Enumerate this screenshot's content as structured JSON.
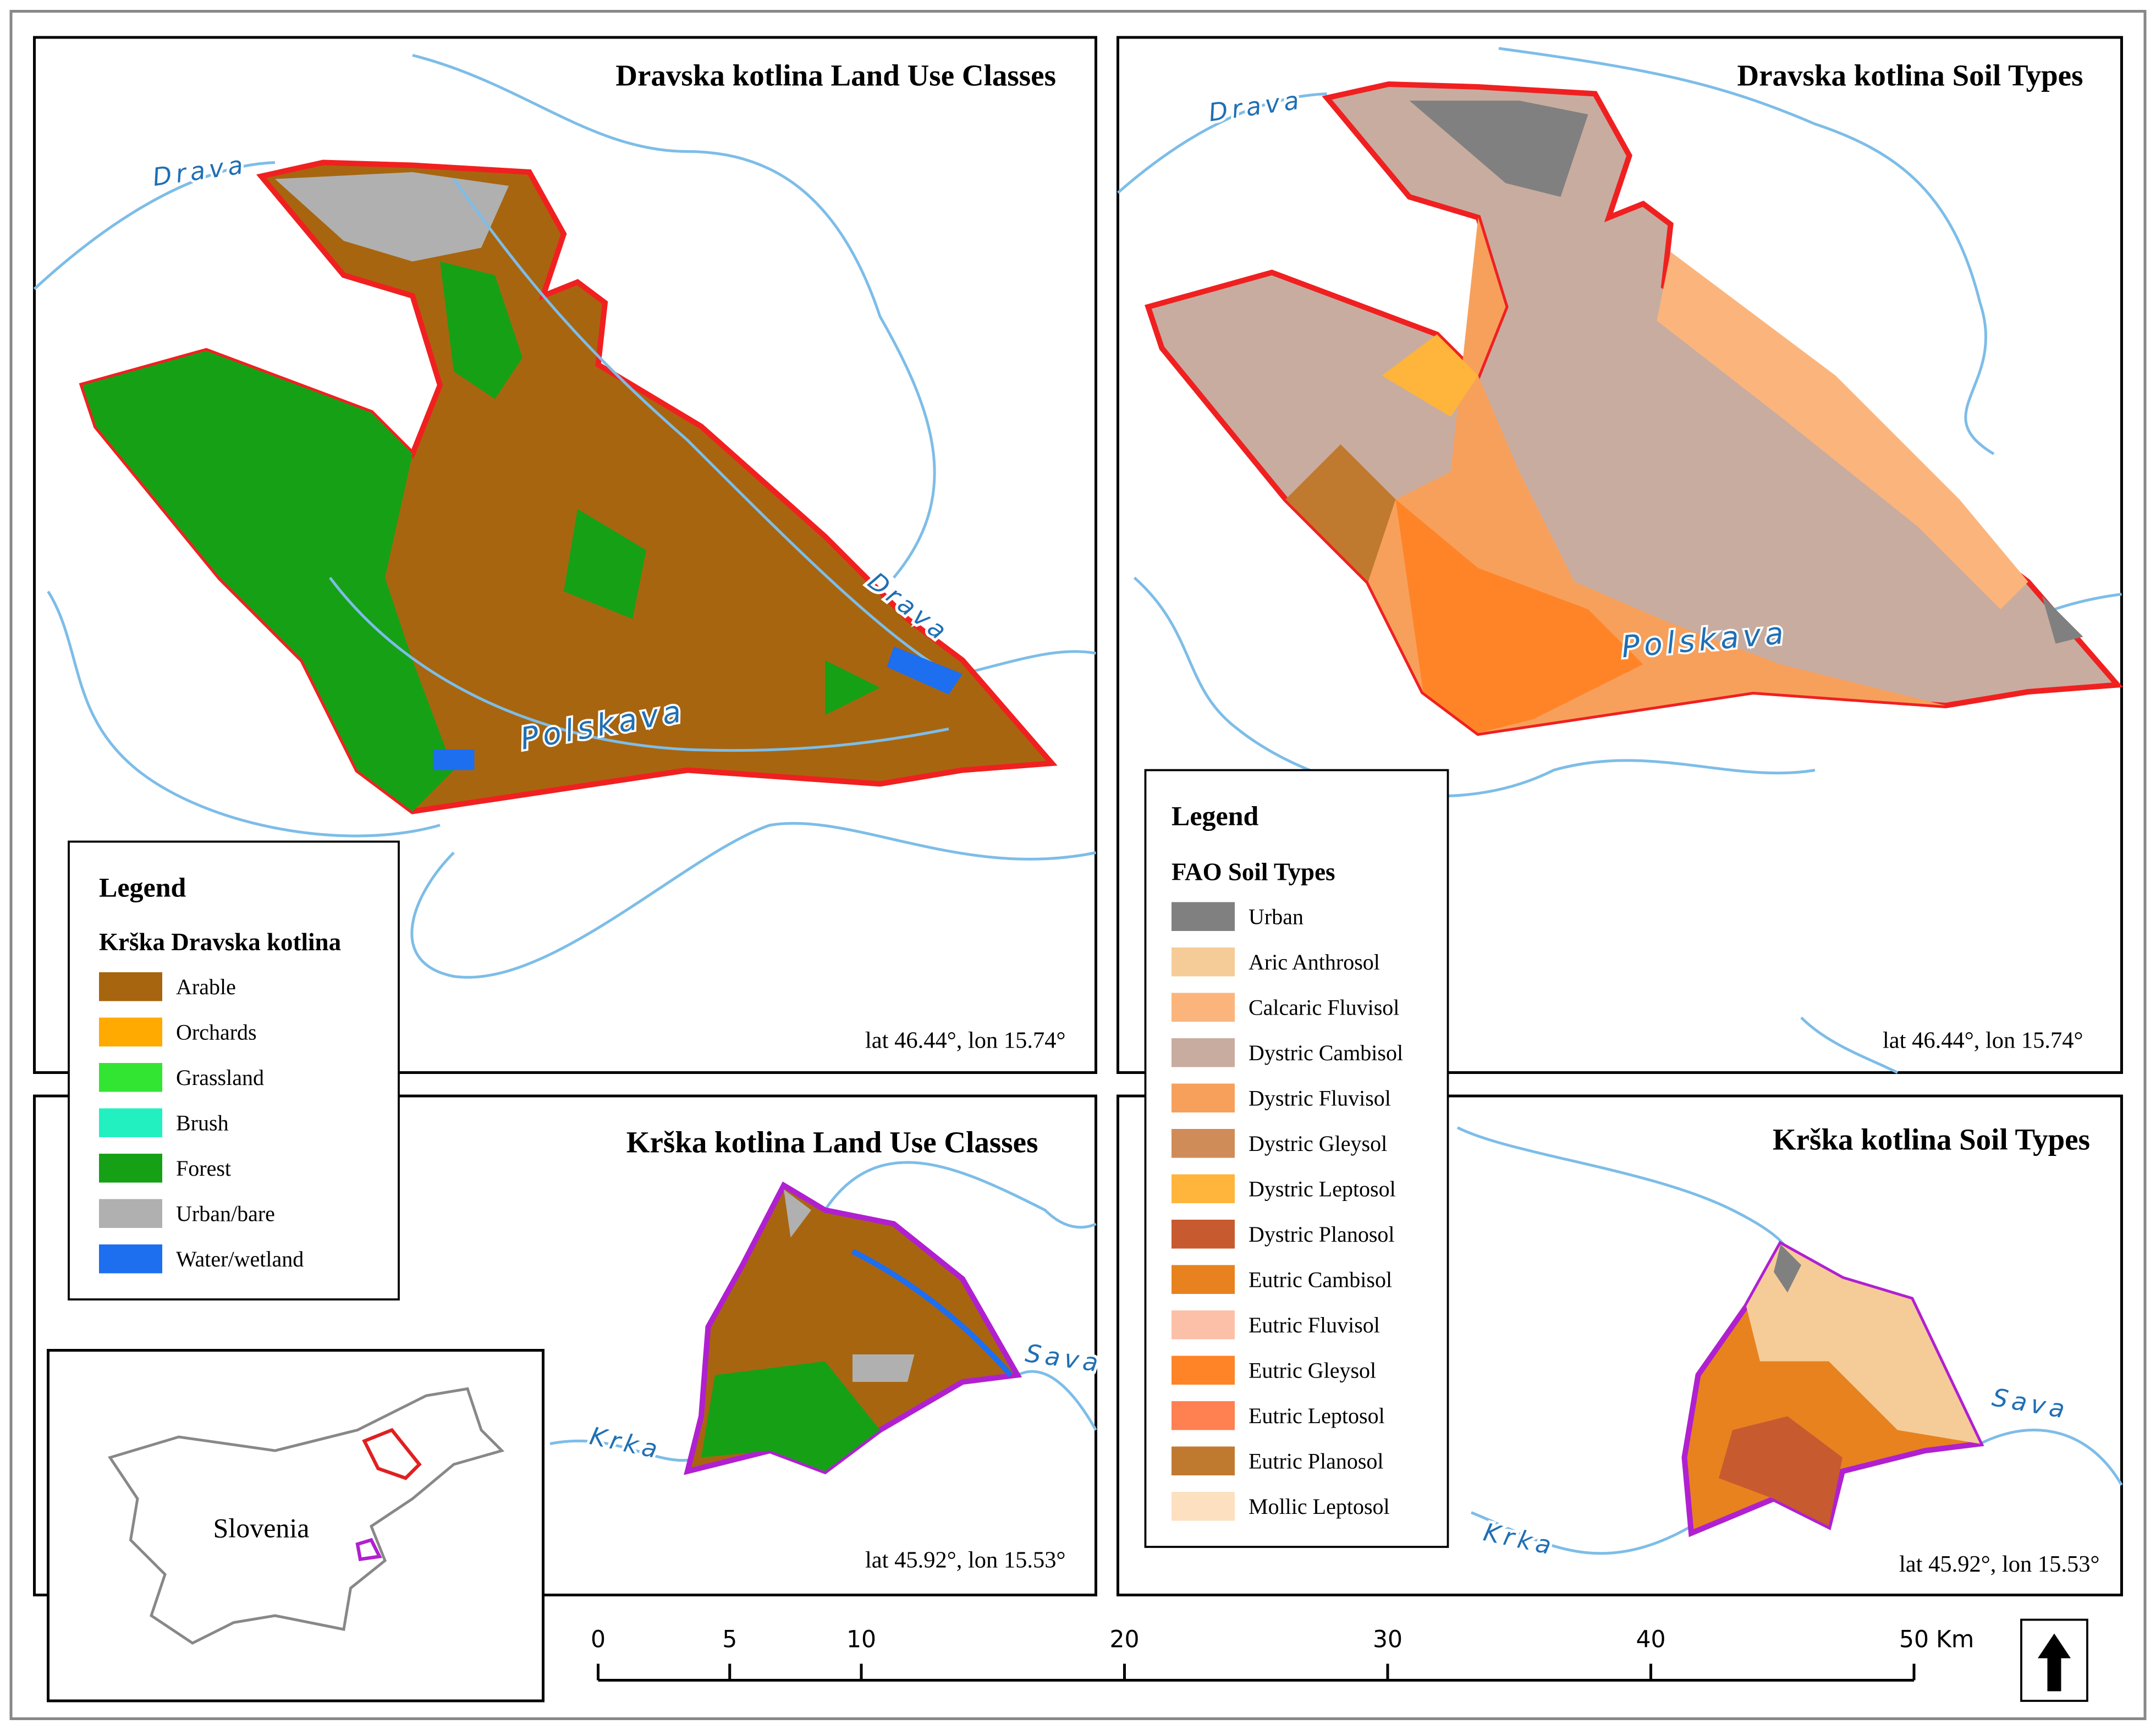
{
  "panels": [
    {
      "title": "Dravska kotlina Land Use Classes",
      "coords": "lat 46.44°, lon 15.74°",
      "rivers": [
        "Drava",
        "Drava",
        "Polskava"
      ]
    },
    {
      "title": "Dravska kotlina Soil Types",
      "coords": "lat 46.44°, lon 15.74°",
      "rivers": [
        "Drava",
        "Polskava"
      ]
    },
    {
      "title": "Krška kotlina Land Use Classes",
      "coords": "lat 45.92°, lon 15.53°",
      "rivers": [
        "Sava",
        "Krka"
      ]
    },
    {
      "title": "Krška kotlina Soil Types",
      "coords": "lat 45.92°, lon 15.53°",
      "rivers": [
        "Sava",
        "Krka"
      ]
    }
  ],
  "land_use_legend": {
    "title": "Legend",
    "subtitle": "Krška Dravska kotlina",
    "items": [
      {
        "label": "Arable",
        "color": "#a8650f"
      },
      {
        "label": "Orchards",
        "color": "#ffaa00"
      },
      {
        "label": "Grassland",
        "color": "#33e533"
      },
      {
        "label": "Brush",
        "color": "#22f0c0"
      },
      {
        "label": "Forest",
        "color": "#16a016"
      },
      {
        "label": "Urban/bare",
        "color": "#b0b0b0"
      },
      {
        "label": "Water/wetland",
        "color": "#1e6ef0"
      }
    ]
  },
  "soil_legend": {
    "title": "Legend",
    "subtitle": "FAO Soil Types",
    "items": [
      {
        "label": "Urban",
        "color": "#808080"
      },
      {
        "label": "Aric Anthrosol",
        "color": "#f5cc98"
      },
      {
        "label": "Calcaric Fluvisol",
        "color": "#fbb57c"
      },
      {
        "label": "Dystric Cambisol",
        "color": "#c8aca0"
      },
      {
        "label": "Dystric Fluvisol",
        "color": "#f7a05c"
      },
      {
        "label": "Dystric Gleysol",
        "color": "#d08c58"
      },
      {
        "label": "Dystric Leptosol",
        "color": "#ffb43c"
      },
      {
        "label": "Dystric Planosol",
        "color": "#c85a30"
      },
      {
        "label": "Eutric Cambisol",
        "color": "#e8821e"
      },
      {
        "label": "Eutric Fluvisol",
        "color": "#fcc0a8"
      },
      {
        "label": "Eutric Gleysol",
        "color": "#ff8428"
      },
      {
        "label": "Eutric Leptosol",
        "color": "#ff8050"
      },
      {
        "label": "Eutric Planosol",
        "color": "#c07a30"
      },
      {
        "label": "Mollic Leptosol",
        "color": "#fde0c0"
      }
    ]
  },
  "inset": {
    "label": "Slovenia"
  },
  "scale_bar": {
    "ticks": [
      0,
      5,
      10,
      20,
      30,
      40,
      50
    ],
    "unit": "Km"
  }
}
